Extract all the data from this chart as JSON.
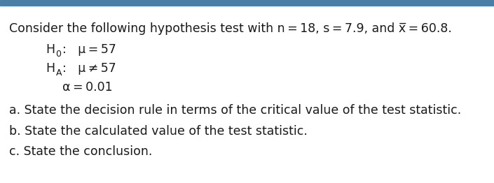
{
  "bg_color": "#ffffff",
  "top_bar_color": "#4a7fa5",
  "text_color": "#1a1a1a",
  "line1_prefix": "Consider the following hypothesis test with n = 18, s = 7.9, and x̅ = 60.8.",
  "h0_H": "H",
  "h0_sub": "0",
  "h0_rest": ":   μ = 57",
  "hA_H": "H",
  "hA_sub": "A",
  "hA_rest": ":   μ ≠ 57",
  "alpha_line": "α = 0.01",
  "line_a": "a. State the decision rule in terms of the critical value of the test statistic.",
  "line_b": "b. State the calculated value of the test statistic.",
  "line_c": "c. State the conclusion.",
  "font_size": 12.5,
  "font_size_sub": 9.0,
  "font_family": "DejaVu Sans"
}
